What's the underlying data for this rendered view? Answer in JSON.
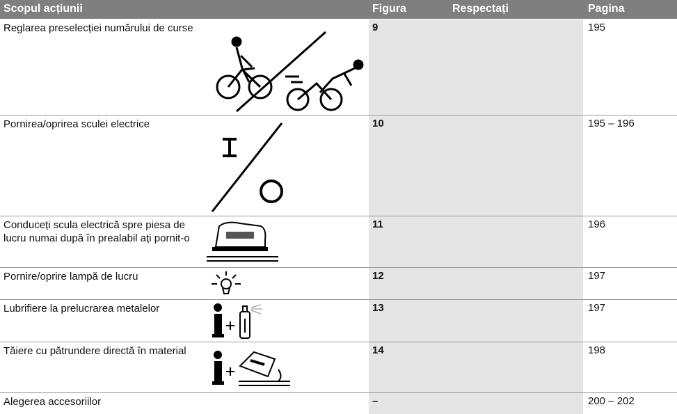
{
  "header": {
    "action": "Scopul acțiunii",
    "figure": "Figura",
    "note": "Respectați",
    "page": "Pagina"
  },
  "rows": [
    {
      "action": "Reglarea preselecției numărului de curse",
      "figure": "9",
      "page": "195"
    },
    {
      "action": "Pornirea/oprirea sculei electrice",
      "figure": "10",
      "page": "195 – 196"
    },
    {
      "action": "Conduceți scula electrică spre piesa de lucru numai după în prealabil ați pornit-o",
      "figure": "11",
      "page": "196"
    },
    {
      "action": "Pornire/oprire lampă de lucru",
      "figure": "12",
      "page": "197"
    },
    {
      "action": "Lubrifiere la prelucrarea metalelor",
      "figure": "13",
      "page": "197"
    },
    {
      "action": "Tăiere cu pătrundere directă în material",
      "figure": "14",
      "page": "198"
    },
    {
      "action": "Alegerea accesoriilor",
      "figure": "–",
      "page": "200 – 202"
    }
  ]
}
